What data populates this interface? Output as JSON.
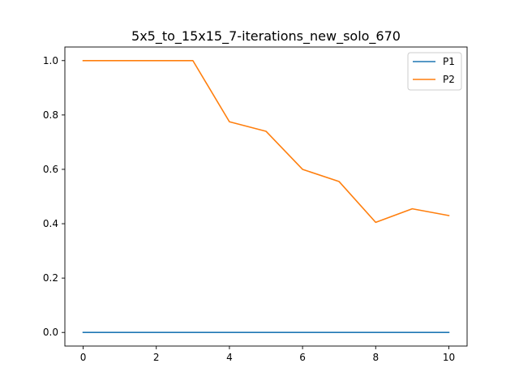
{
  "chart_data": {
    "type": "line",
    "title": "5x5_to_15x15_7-iterations_new_solo_670",
    "xlabel": "",
    "ylabel": "",
    "x": [
      0,
      1,
      2,
      3,
      4,
      5,
      6,
      7,
      8,
      9,
      10
    ],
    "xlim": [
      -0.5,
      10.5
    ],
    "ylim": [
      -0.05,
      1.05
    ],
    "xticks": [
      0,
      2,
      4,
      6,
      8,
      10
    ],
    "xtick_labels": [
      "0",
      "2",
      "4",
      "6",
      "8",
      "10"
    ],
    "yticks": [
      0.0,
      0.2,
      0.4,
      0.6,
      0.8,
      1.0
    ],
    "ytick_labels": [
      "0.0",
      "0.2",
      "0.4",
      "0.6",
      "0.8",
      "1.0"
    ],
    "grid": false,
    "legend_position": "top-right",
    "series": [
      {
        "name": "P1",
        "color": "#1f77b4",
        "values": [
          0,
          0,
          0,
          0,
          0,
          0,
          0,
          0,
          0,
          0,
          0
        ]
      },
      {
        "name": "P2",
        "color": "#ff7f0e",
        "values": [
          1.0,
          1.0,
          1.0,
          1.0,
          0.775,
          0.74,
          0.6,
          0.555,
          0.405,
          0.455,
          0.43
        ]
      }
    ]
  }
}
